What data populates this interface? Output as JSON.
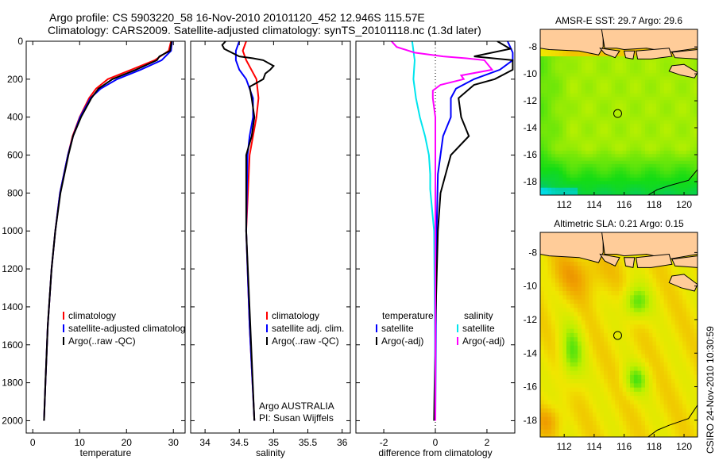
{
  "title_line1": "Argo profile: CS 5903220_58 16-Nov-2010 20101120_452 12.946S 115.57E",
  "title_line2": "Climatology: CARS2009. Satellite-adjusted climatology: synTS_20101118.nc (1.3d later)",
  "credit": "CSIRO 24-Nov-2010 10:30:59",
  "colors": {
    "red": "#ff0000",
    "blue": "#0000ff",
    "black": "#000000",
    "cyan": "#00e5ee",
    "magenta": "#ff00ff"
  },
  "chart_data": [
    {
      "type": "line",
      "xlabel": "temperature",
      "ylabel": "",
      "xlim": [
        -1.4,
        32.5
      ],
      "ylim": [
        0,
        2065
      ],
      "y_inverted": true,
      "xticks": [
        0,
        10,
        20,
        30
      ],
      "yticks": [
        0,
        200,
        400,
        600,
        800,
        1000,
        1200,
        1400,
        1600,
        1800,
        2000
      ],
      "legend": [
        "climatology",
        "satellite-adjusted climatology",
        "Argo(..raw -QC)"
      ],
      "series": [
        {
          "name": "climatology",
          "color": "red",
          "depth": [
            0,
            50,
            100,
            150,
            200,
            250,
            300,
            400,
            500,
            600,
            800,
            1000,
            1200,
            1500,
            1800,
            2000
          ],
          "values": [
            29.5,
            29.0,
            26.0,
            21.0,
            16.0,
            13.5,
            12.0,
            10.0,
            8.5,
            7.5,
            5.8,
            4.8,
            4.0,
            3.2,
            2.7,
            2.4
          ]
        },
        {
          "name": "satellite-adjusted climatology",
          "color": "blue",
          "depth": [
            0,
            50,
            100,
            150,
            200,
            250,
            300,
            400,
            500,
            600,
            800,
            1000,
            1200,
            1500,
            1800,
            2000
          ],
          "values": [
            29.7,
            29.5,
            27.5,
            23.0,
            18.0,
            14.5,
            12.3,
            10.1,
            8.6,
            7.5,
            5.8,
            4.8,
            4.0,
            3.2,
            2.7,
            2.4
          ]
        },
        {
          "name": "Argo(..raw -QC)",
          "color": "black",
          "depth": [
            0,
            50,
            80,
            100,
            150,
            200,
            250,
            300,
            400,
            500,
            600,
            800,
            1000,
            1200,
            1500,
            1800,
            2000
          ],
          "values": [
            29.6,
            29.3,
            27.0,
            26.5,
            22.0,
            17.0,
            14.0,
            12.5,
            10.3,
            8.6,
            7.6,
            5.9,
            4.8,
            4.0,
            3.2,
            2.7,
            2.4
          ]
        }
      ]
    },
    {
      "type": "line",
      "xlabel": "salinity",
      "xlim": [
        33.79,
        36.12
      ],
      "ylim": [
        0,
        2065
      ],
      "y_inverted": true,
      "xticks": [
        34,
        34.5,
        35,
        35.5,
        36
      ],
      "legend": [
        "climatology",
        "satellite adj. clim.",
        "Argo(..raw -QC)"
      ],
      "annotation": [
        "Argo AUSTRALIA",
        "PI: Susan Wijffels"
      ],
      "series": [
        {
          "name": "climatology",
          "color": "red",
          "depth": [
            0,
            50,
            100,
            200,
            300,
            400,
            500,
            600,
            1000,
            1500,
            2000
          ],
          "values": [
            34.6,
            34.55,
            34.6,
            34.75,
            34.78,
            34.75,
            34.7,
            34.65,
            34.6,
            34.65,
            34.72
          ]
        },
        {
          "name": "satellite adj. clim.",
          "color": "blue",
          "depth": [
            0,
            50,
            100,
            150,
            200,
            300,
            400,
            500,
            600,
            1000,
            1500,
            2000
          ],
          "values": [
            34.5,
            34.45,
            34.45,
            34.5,
            34.6,
            34.7,
            34.7,
            34.65,
            34.62,
            34.6,
            34.65,
            34.72
          ]
        },
        {
          "name": "Argo(..raw -QC)",
          "color": "black",
          "depth": [
            0,
            20,
            40,
            80,
            90,
            100,
            130,
            150,
            170,
            200,
            220,
            240,
            300,
            400,
            500,
            600,
            1000,
            1500,
            2000
          ],
          "values": [
            34.3,
            34.25,
            34.28,
            34.5,
            34.7,
            34.85,
            35.0,
            34.95,
            34.88,
            34.85,
            34.75,
            34.65,
            34.68,
            34.72,
            34.68,
            34.6,
            34.6,
            34.66,
            34.72
          ]
        }
      ]
    },
    {
      "type": "line",
      "xlabel": "difference from climatology",
      "xlim": [
        -3.08,
        3.08
      ],
      "ylim": [
        0,
        2065
      ],
      "y_inverted": true,
      "xticks": [
        -2,
        0,
        2
      ],
      "legend_temperature": [
        "temperature",
        "satellite",
        "Argo(-adj)"
      ],
      "legend_salinity": [
        "salinity",
        "satellite",
        "Argo(-adj)"
      ],
      "series": [
        {
          "name": "temperature satellite",
          "color": "blue",
          "depth": [
            0,
            30,
            60,
            100,
            150,
            200,
            250,
            300,
            400,
            500,
            700,
            1000,
            1500,
            2000
          ],
          "values": [
            2.8,
            2.9,
            3.0,
            3.0,
            2.5,
            1.5,
            0.8,
            0.6,
            0.6,
            0.3,
            0.1,
            0.05,
            0.02,
            0
          ]
        },
        {
          "name": "temperature Argo(-adj)",
          "color": "black",
          "depth": [
            0,
            40,
            80,
            100,
            150,
            200,
            230,
            300,
            400,
            500,
            600,
            800,
            1000,
            1500,
            2000
          ],
          "values": [
            2.4,
            2.9,
            1.5,
            3.0,
            3.0,
            2.3,
            1.5,
            0.9,
            1.0,
            1.3,
            0.6,
            0.2,
            0.1,
            0,
            -0.05
          ]
        },
        {
          "name": "salinity satellite",
          "color": "cyan",
          "depth": [
            0,
            50,
            100,
            200,
            300,
            400,
            500,
            600,
            700,
            780,
            1000,
            1500,
            2000
          ],
          "values": [
            -0.9,
            -0.85,
            -0.8,
            -0.85,
            -0.75,
            -0.6,
            -0.4,
            -0.25,
            -0.2,
            -0.2,
            -0.05,
            -0.02,
            0
          ]
        },
        {
          "name": "salinity Argo(-adj)",
          "color": "magenta",
          "depth": [
            0,
            30,
            60,
            80,
            90,
            100,
            150,
            180,
            200,
            230,
            260,
            300,
            400,
            1000,
            2000
          ],
          "values": [
            -1.7,
            -1.5,
            -0.8,
            0.3,
            1.2,
            1.9,
            2.2,
            1.0,
            1.1,
            0.2,
            -0.1,
            -0.1,
            0,
            0,
            0
          ]
        }
      ]
    }
  ],
  "maps": [
    {
      "title": "AMSR-E SST: 29.7 Argo: 29.6",
      "kind": "sst",
      "lon": [
        110.4,
        120.9
      ],
      "lat": [
        -6.7,
        -19.0
      ],
      "xticks": [
        112,
        114,
        116,
        118,
        120
      ],
      "yticks": [
        -8,
        -10,
        -12,
        -14,
        -16,
        -18
      ],
      "argo_position": [
        115.57,
        -12.946
      ]
    },
    {
      "title": "Altimetric SLA: 0.21 Argo: 0.15",
      "kind": "sla",
      "lon": [
        110.4,
        120.9
      ],
      "lat": [
        -6.8,
        -19.0
      ],
      "xticks": [
        112,
        114,
        116,
        118,
        120
      ],
      "yticks": [
        -8,
        -10,
        -12,
        -14,
        -16,
        -18
      ],
      "argo_position": [
        115.57,
        -12.946
      ]
    }
  ]
}
